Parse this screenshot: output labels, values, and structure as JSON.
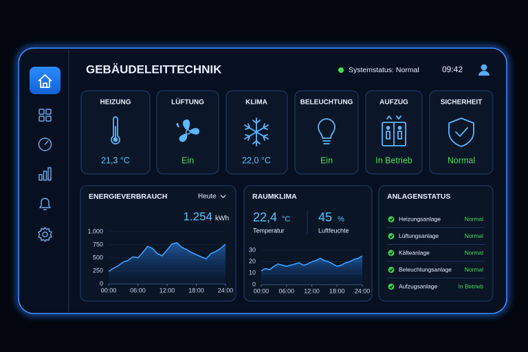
{
  "header": {
    "title": "GEBÄUDELEITTECHNIK",
    "status": "Systemstatus: Normal",
    "time": "09:42"
  },
  "tiles": [
    {
      "label": "HEIZUNG",
      "value": "21,3 °C"
    },
    {
      "label": "LÜFTUNG",
      "value": "Ein"
    },
    {
      "label": "KLIMA",
      "value": "22,0 °C"
    },
    {
      "label": "BELEUCHTUNG",
      "value": "Ein"
    },
    {
      "label": "AUFZUG",
      "value": "In Betrieb"
    },
    {
      "label": "SICHERHEIT",
      "value": "Normal"
    }
  ],
  "energy": {
    "title": "ENERGIEVERBRAUCH",
    "period": "Heute",
    "total": "1.254",
    "unit": "kWh",
    "chart": {
      "type": "line",
      "x": [
        0,
        1,
        2,
        3,
        4,
        5,
        6,
        7,
        8,
        9,
        10,
        11,
        12,
        13,
        14,
        15,
        16,
        17,
        18,
        19,
        20,
        21,
        22,
        23,
        24
      ],
      "values": [
        240,
        300,
        350,
        420,
        450,
        520,
        500,
        600,
        720,
        680,
        580,
        540,
        650,
        760,
        790,
        700,
        660,
        600,
        560,
        520,
        480,
        580,
        620,
        680,
        760
      ],
      "xlim": [
        0,
        24
      ],
      "xticks": [
        {
          "value": 0,
          "label": "00:00"
        },
        {
          "value": 6,
          "label": "06:00"
        },
        {
          "value": 12,
          "label": "12:00"
        },
        {
          "value": 18,
          "label": "18:00"
        },
        {
          "value": 24,
          "label": "24:00"
        }
      ],
      "ylim": [
        0,
        1000
      ],
      "yticks": [
        0,
        250,
        500,
        750,
        {
          "value": 1000,
          "label": "1.000"
        }
      ]
    }
  },
  "climate": {
    "title": "RAUMKLIMA",
    "temperature": "22,4",
    "temperature_unit": "°C",
    "temperature_label": "Temperatur",
    "humidity": "45",
    "humidity_unit": "%",
    "humidity_label": "Luftfeuchte",
    "chart": {
      "type": "line",
      "x": [
        0,
        1,
        2,
        3,
        4,
        5,
        6,
        7,
        8,
        9,
        10,
        11,
        12,
        13,
        14,
        15,
        16,
        17,
        18,
        19,
        20,
        21,
        22,
        23,
        24
      ],
      "values": [
        12,
        14,
        13,
        16,
        18,
        17,
        16,
        17,
        18,
        19,
        17,
        18,
        20,
        21,
        23,
        21,
        20,
        18,
        16,
        17,
        19,
        20,
        22,
        23,
        25
      ],
      "xlim": [
        0,
        24
      ],
      "xticks": [
        {
          "value": 0,
          "label": "00:00"
        },
        {
          "value": 6,
          "label": "06:00"
        },
        {
          "value": 12,
          "label": "12:00"
        },
        {
          "value": 18,
          "label": "18:00"
        },
        {
          "value": 24,
          "label": "24:00"
        }
      ],
      "ylim": [
        0,
        30
      ],
      "yticks": [
        0,
        10,
        20,
        30
      ]
    }
  },
  "status": {
    "title": "ANLAGENSTATUS",
    "rows": [
      {
        "name": "Heizungsanlage",
        "state": "Normal"
      },
      {
        "name": "Lüftungsanlage",
        "state": "Normal"
      },
      {
        "name": "Kälteanlage",
        "state": "Normal"
      },
      {
        "name": "Beleuchtungsanlage",
        "state": "Normal"
      },
      {
        "name": "Aufzugsanlage",
        "state": "In Betrieb"
      }
    ]
  }
}
